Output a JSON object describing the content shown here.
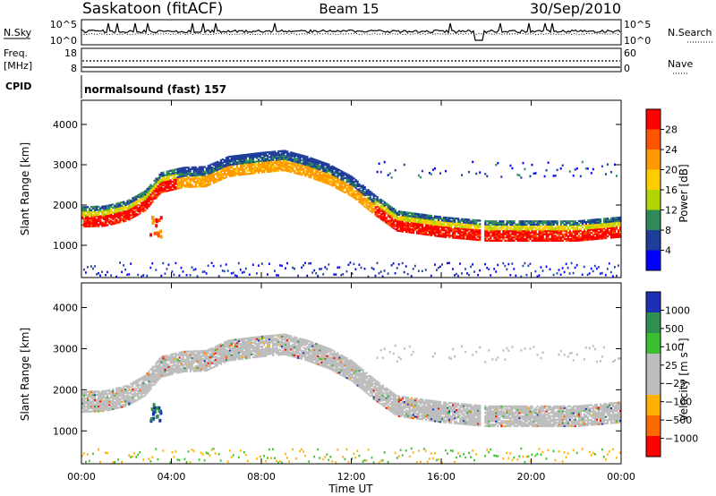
{
  "header": {
    "station": "Saskatoon (fitACF)",
    "beam": "Beam 15",
    "date": "30/Sep/2010"
  },
  "top_panels": {
    "nsky_label": "N.Sky",
    "nsearch_label": "N.Search",
    "noise_ticks": [
      "10^5",
      "10^0"
    ],
    "freq_label": "Freq.",
    "freq_unit": "[MHz]",
    "freq_ticks": [
      "18",
      "8"
    ],
    "nave_ticks": [
      "60",
      "0"
    ],
    "nave_label": "Nave",
    "cpid_label": "CPID",
    "cpid_value": "normalsound (fast) 157"
  },
  "chart_data": [
    {
      "type": "heatmap",
      "ylabel": "Slant Range [km]",
      "xlabel": "Time UT",
      "x_ticks": [
        "00:00",
        "04:00",
        "08:00",
        "12:00",
        "16:00",
        "20:00",
        "00:00"
      ],
      "y_ticks": [
        1000,
        2000,
        3000,
        4000
      ],
      "ylim": [
        200,
        4600
      ],
      "colorbar_label": "Power [dB]",
      "colorbar_ticks": [
        "28",
        "24",
        "20",
        "16",
        "12",
        "8",
        "4"
      ],
      "colors": [
        "#ff0000",
        "#ff5500",
        "#ff9900",
        "#ffcc00",
        "#b2d400",
        "#2e8b57",
        "#1e3c9a",
        "#0000ff"
      ],
      "bands": [
        {
          "t": [
            0,
            1,
            2,
            2.8,
            3.5,
            4.5,
            5.5,
            6.5,
            8,
            9,
            10,
            11,
            12,
            13,
            14,
            16,
            18,
            20,
            22,
            24
          ],
          "r": [
            1700,
            1720,
            1850,
            2100,
            2550,
            2680,
            2700,
            2950,
            3050,
            3100,
            2950,
            2750,
            2450,
            2000,
            1600,
            1450,
            1350,
            1350,
            1350,
            1450
          ]
        }
      ]
    },
    {
      "type": "heatmap",
      "ylabel": "Slant Range [km]",
      "xlabel": "Time UT",
      "x_ticks": [
        "00:00",
        "04:00",
        "08:00",
        "12:00",
        "16:00",
        "20:00",
        "00:00"
      ],
      "y_ticks": [
        1000,
        2000,
        3000,
        4000
      ],
      "ylim": [
        200,
        4600
      ],
      "colorbar_label": "Velocity [m s⁻¹]",
      "colorbar_ticks": [
        "1000",
        "500",
        "100",
        "25",
        "−25",
        "−100",
        "−500",
        "−1000"
      ],
      "colors": [
        "#1c2fb5",
        "#2f8f4f",
        "#3bbf2f",
        "#bdbdbd",
        "#bdbdbd",
        "#ffb000",
        "#ff6a00",
        "#ff0000"
      ],
      "bands": [
        {
          "t": [
            0,
            1,
            2,
            2.8,
            3.5,
            4.5,
            5.5,
            6.5,
            8,
            9,
            10,
            11,
            12,
            13,
            14,
            16,
            18,
            20,
            22,
            24
          ],
          "r": [
            1700,
            1720,
            1850,
            2100,
            2550,
            2680,
            2700,
            2950,
            3050,
            3100,
            2950,
            2750,
            2450,
            2000,
            1600,
            1450,
            1350,
            1350,
            1350,
            1450
          ]
        }
      ]
    }
  ]
}
